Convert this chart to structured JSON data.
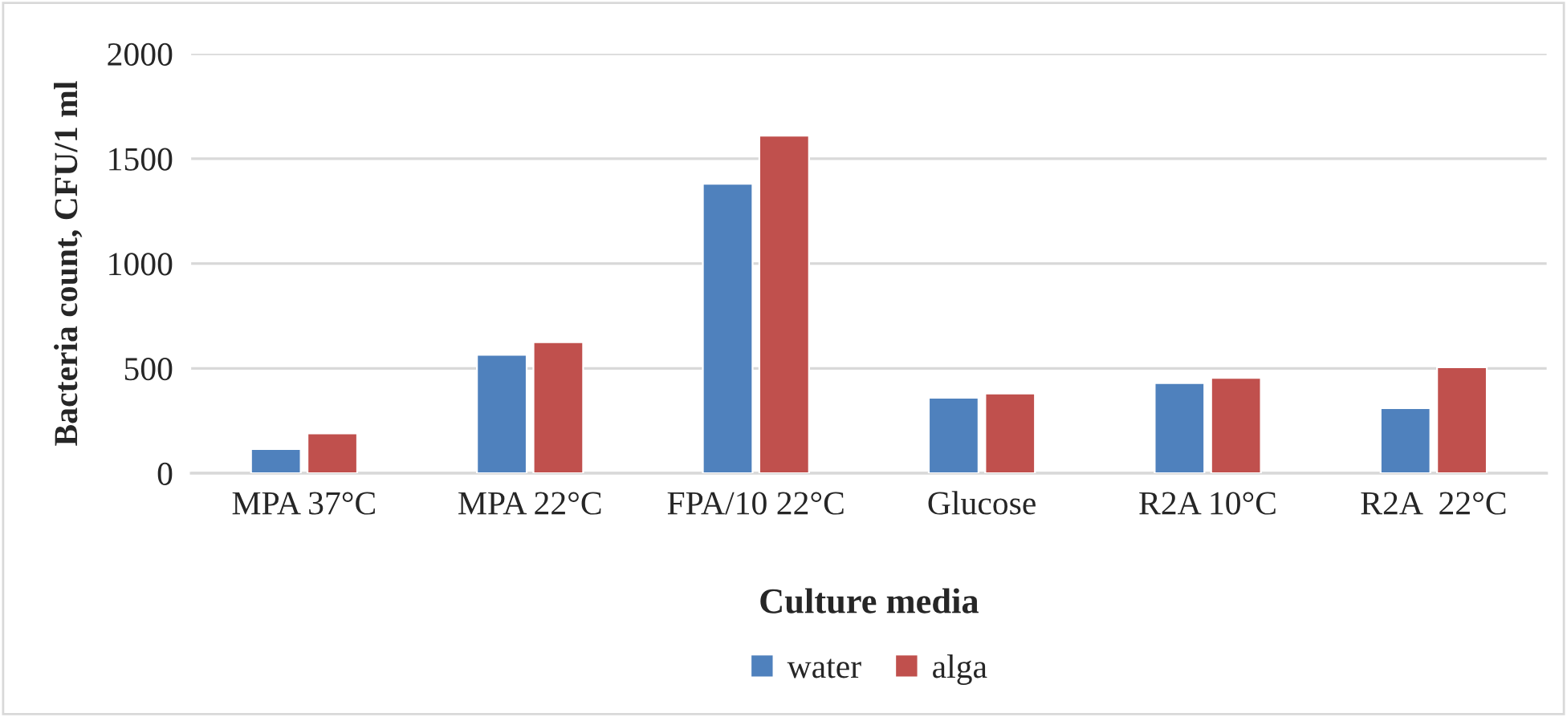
{
  "chart_data": {
    "type": "bar",
    "xlabel": "Culture media",
    "ylabel": "Bacteria count, CFU/1 ml",
    "categories": [
      "MPA 37°C",
      "MPA 22°C",
      "FPA/10 22°C",
      "Glucose",
      "R2A 10°C",
      "R2A  22°C"
    ],
    "series": [
      {
        "name": "water",
        "color": "#4f81bd",
        "values": [
          115,
          565,
          1380,
          360,
          430,
          310
        ]
      },
      {
        "name": "alga",
        "color": "#c0504d",
        "values": [
          190,
          625,
          1610,
          380,
          455,
          505
        ]
      }
    ],
    "ylim": [
      0,
      2000
    ],
    "yticks": [
      0,
      500,
      1000,
      1500,
      2000
    ],
    "grid": "y",
    "legend": "bottom"
  }
}
